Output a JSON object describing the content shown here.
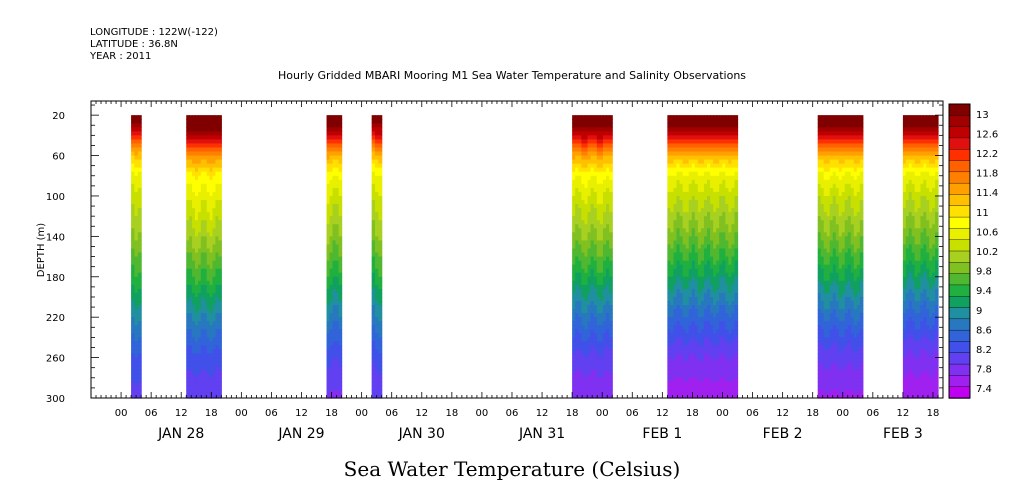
{
  "header": {
    "longitude": "LONGITUDE : 122W(-122)",
    "latitude": "LATITUDE : 36.8N",
    "year": "YEAR : 2011"
  },
  "chart_data": {
    "type": "heatmap",
    "title": "Hourly Gridded MBARI Mooring M1 Sea Water Temperature and Salinity Observations",
    "xlabel": "",
    "ylabel": "DEPTH (m)",
    "colorbar_label": "Sea Water Temperature (Celsius)",
    "x_unit": "hours since JAN 28 00:00",
    "xlim": [
      -6,
      164
    ],
    "ylim": [
      300,
      6
    ],
    "y_inverted": true,
    "y_ticks": [
      20,
      60,
      100,
      140,
      180,
      220,
      260,
      300
    ],
    "x_hour_ticks": [
      "00",
      "06",
      "12",
      "18"
    ],
    "date_labels": [
      {
        "label": "JAN 28",
        "hour": 12
      },
      {
        "label": "JAN 29",
        "hour": 36
      },
      {
        "label": "JAN 30",
        "hour": 60
      },
      {
        "label": "JAN 31",
        "hour": 84
      },
      {
        "label": "FEB  1",
        "hour": 108
      },
      {
        "label": "FEB  2",
        "hour": 132
      },
      {
        "label": "FEB  3",
        "hour": 156
      }
    ],
    "colorbar_levels": [
      "13",
      "12.6",
      "12.2",
      "11.8",
      "11.4",
      "11",
      "10.6",
      "10.2",
      "9.8",
      "9.4",
      "9",
      "8.6",
      "8.2",
      "7.8",
      "7.4"
    ],
    "color_scale": {
      "min": 7.2,
      "max": 13.2,
      "step": 0.2,
      "colors": [
        "#c000f0",
        "#a020f0",
        "#8030f0",
        "#6040f0",
        "#4050e8",
        "#3064d8",
        "#2878c0",
        "#2090a0",
        "#10a060",
        "#20b040",
        "#50b830",
        "#80c020",
        "#a8d020",
        "#c8e000",
        "#e8f000",
        "#ffff00",
        "#ffe000",
        "#ffc000",
        "#ffa000",
        "#ff8000",
        "#ff6000",
        "#ff3000",
        "#e01010",
        "#c00000",
        "#a00000",
        "#800000"
      ]
    },
    "depth_profile": {
      "depths": [
        20,
        40,
        60,
        80,
        100,
        140,
        180,
        220,
        260,
        300
      ],
      "temps": [
        12.7,
        11.8,
        10.8,
        10.2,
        9.95,
        9.55,
        9.05,
        8.5,
        8.0,
        7.7
      ]
    },
    "data_segments": [
      {
        "start_hour": 2,
        "end_hour": 4,
        "surface_offset": -0.2,
        "deep_offset": 0.2
      },
      {
        "start_hour": 13,
        "end_hour": 20,
        "surface_offset": 0.2,
        "deep_offset": 0.1
      },
      {
        "start_hour": 41,
        "end_hour": 44,
        "surface_offset": 0.0,
        "deep_offset": 0.05
      },
      {
        "start_hour": 50,
        "end_hour": 52,
        "surface_offset": -0.1,
        "deep_offset": 0.1
      },
      {
        "start_hour": 90,
        "end_hour": 98,
        "surface_offset": 0.1,
        "deep_offset": -0.1
      },
      {
        "start_hour": 109,
        "end_hour": 123,
        "surface_offset": 0.0,
        "deep_offset": -0.25
      },
      {
        "start_hour": 139,
        "end_hour": 148,
        "surface_offset": 0.0,
        "deep_offset": -0.15
      },
      {
        "start_hour": 156,
        "end_hour": 163,
        "surface_offset": 0.0,
        "deep_offset": -0.3
      }
    ]
  }
}
